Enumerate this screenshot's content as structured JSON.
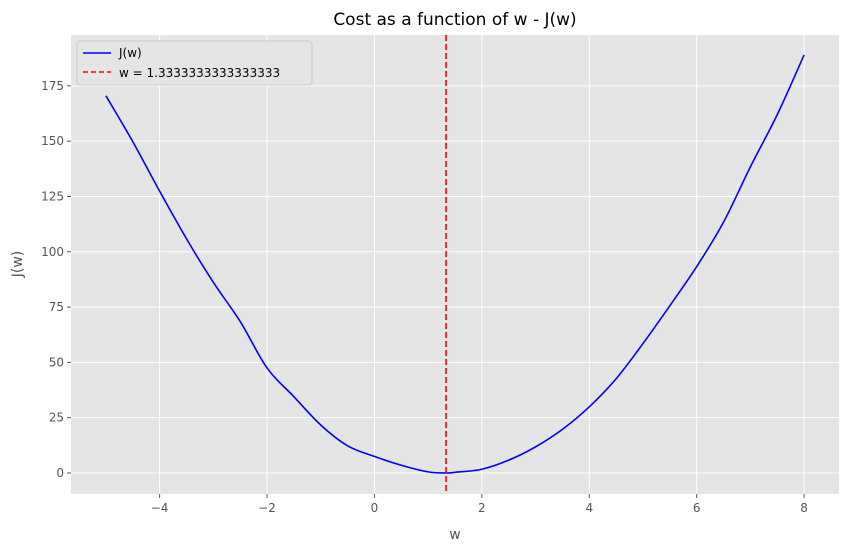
{
  "chart_data": {
    "type": "line",
    "title": "Cost as a function of w - J(w)",
    "xlabel": "w",
    "ylabel": "J(w)",
    "xlim": [
      -5.65,
      8.65
    ],
    "ylim": [
      -9.5,
      198
    ],
    "x_ticks": [
      -4,
      -2,
      0,
      2,
      4,
      6,
      8
    ],
    "y_ticks": [
      0,
      25,
      50,
      75,
      100,
      125,
      150,
      175
    ],
    "x_tick_labels": [
      "−4",
      "−2",
      "0",
      "2",
      "4",
      "6",
      "8"
    ],
    "y_tick_labels": [
      "0",
      "25",
      "50",
      "75",
      "100",
      "125",
      "150",
      "175"
    ],
    "grid": true,
    "legend_position": "top-left",
    "series": [
      {
        "name": "J(w)",
        "style": "solid",
        "color": "#0000ff",
        "x": [
          -5,
          -4.5,
          -4,
          -3.5,
          -3,
          -2.5,
          -2,
          -1.5,
          -1,
          -0.5,
          0,
          0.5,
          1,
          1.3333333333333333,
          1.5,
          2,
          2.5,
          3,
          3.5,
          4,
          4.5,
          5,
          5.5,
          6,
          6.5,
          7,
          7.5,
          8
        ],
        "y": [
          170.5,
          149.8,
          127.4,
          105.9,
          86.2,
          68.5,
          47.5,
          34.5,
          21.7,
          12.3,
          7.5,
          3.5,
          0.5,
          0.0,
          0.3,
          1.7,
          5.8,
          11.8,
          19.7,
          29.9,
          42.6,
          58.5,
          75.6,
          93.3,
          113.4,
          138.4,
          162.0,
          189.0
        ]
      },
      {
        "name": "w = 1.3333333333333333",
        "style": "dashed",
        "color": "#ff0000",
        "x_constant": 1.3333333333333333
      }
    ]
  },
  "colors": {
    "plot_background": "#e5e5e5",
    "grid": "#ffffff",
    "curve": "#0000ff",
    "vline": "#ff0000"
  }
}
